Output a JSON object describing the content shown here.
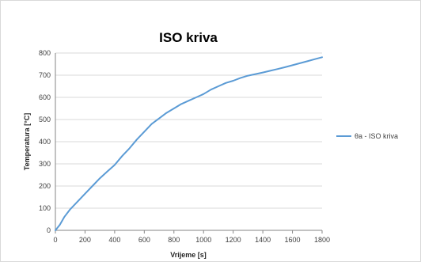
{
  "chart_data": {
    "type": "line",
    "title": "ISO kriva",
    "xlabel": "Vrijeme [s]",
    "ylabel": "Temperatura [°C]",
    "xlim": [
      0,
      1800
    ],
    "ylim": [
      0,
      800
    ],
    "x_ticks": [
      "0",
      "200",
      "400",
      "600",
      "800",
      "1000",
      "1200",
      "1400",
      "1600",
      "1800"
    ],
    "y_ticks": [
      "0",
      "100",
      "200",
      "300",
      "400",
      "500",
      "600",
      "700",
      "800"
    ],
    "grid": true,
    "legend_position": "right",
    "series": [
      {
        "name": "θa - ISO kriva",
        "color": "#5b9bd5",
        "x": [
          0,
          30,
          60,
          100,
          150,
          200,
          250,
          300,
          350,
          400,
          450,
          500,
          550,
          600,
          650,
          700,
          750,
          800,
          850,
          900,
          950,
          1000,
          1050,
          1100,
          1150,
          1200,
          1250,
          1300,
          1350,
          1400,
          1450,
          1500,
          1550,
          1600,
          1650,
          1700,
          1750,
          1800
        ],
        "y": [
          0,
          25,
          60,
          95,
          130,
          165,
          200,
          235,
          265,
          295,
          335,
          370,
          410,
          445,
          480,
          505,
          530,
          550,
          570,
          585,
          600,
          615,
          635,
          650,
          665,
          675,
          688,
          698,
          705,
          712,
          720,
          728,
          736,
          745,
          754,
          763,
          772,
          781
        ]
      }
    ]
  }
}
